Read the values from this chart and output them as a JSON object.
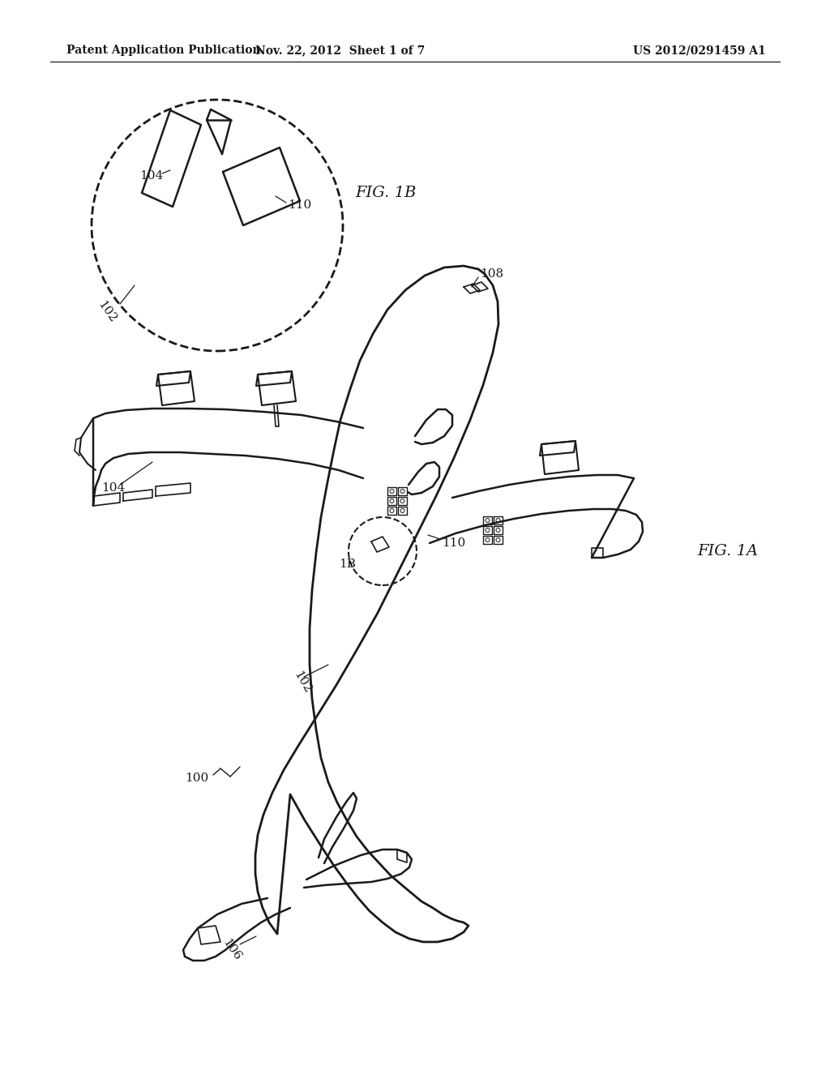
{
  "background_color": "#ffffff",
  "line_color": "#1a1a1a",
  "header_text_left": "Patent Application Publication",
  "header_text_mid": "Nov. 22, 2012  Sheet 1 of 7",
  "header_text_right": "US 2012/0291459 A1",
  "fig1a_label": "FIG. 1A",
  "fig1b_label": "FIG. 1B"
}
